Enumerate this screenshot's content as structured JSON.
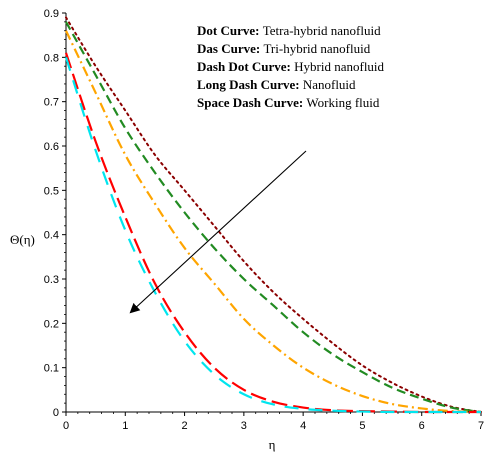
{
  "chart_data": {
    "type": "line",
    "xlabel": "η",
    "ylabel": "Θ(η)",
    "xlim": [
      0,
      7
    ],
    "ylim": [
      0,
      0.9
    ],
    "x_ticks": [
      "0",
      "1",
      "2",
      "3",
      "4",
      "5",
      "6",
      "7"
    ],
    "y_ticks": [
      "0",
      "0.1",
      "0.2",
      "0.3",
      "0.4",
      "0.5",
      "0.6",
      "0.7",
      "0.8",
      "0.9"
    ],
    "grid": false,
    "legend": [
      {
        "key": "Dot Curve:",
        "text": "Tetra-hybrid nanofluid"
      },
      {
        "key": "Das Curve:",
        "text": "Tri-hybrid nanofluid"
      },
      {
        "key": "Dash Dot Curve:",
        "text": "Hybrid nanofluid"
      },
      {
        "key": "Long Dash Curve:",
        "text": "Nanofluid"
      },
      {
        "key": "Space Dash Curve:",
        "text": "Working fluid"
      }
    ],
    "legend_position": "top-right",
    "arrow_direction": "upper-right to lower-left",
    "series": [
      {
        "color": "#8b0000",
        "style": "dot",
        "x": [
          0,
          0.5,
          1,
          1.5,
          2,
          2.5,
          3,
          3.5,
          4,
          4.5,
          5,
          5.5,
          6,
          6.5,
          7
        ],
        "y": [
          0.89,
          0.78,
          0.68,
          0.58,
          0.5,
          0.42,
          0.34,
          0.27,
          0.21,
          0.155,
          0.105,
          0.066,
          0.035,
          0.012,
          0.0
        ]
      },
      {
        "color": "#228b22",
        "style": "dash",
        "x": [
          0,
          0.5,
          1,
          1.5,
          2,
          2.5,
          3,
          3.5,
          4,
          4.5,
          5,
          5.5,
          6,
          6.5,
          7
        ],
        "y": [
          0.88,
          0.76,
          0.64,
          0.54,
          0.45,
          0.37,
          0.3,
          0.24,
          0.18,
          0.13,
          0.09,
          0.055,
          0.03,
          0.01,
          0.0
        ]
      },
      {
        "color": "#ffa500",
        "style": "dashdot",
        "x": [
          0,
          0.5,
          1,
          1.5,
          2,
          2.5,
          3,
          3.5,
          4,
          4.5,
          5,
          5.5,
          6,
          6.5,
          7
        ],
        "y": [
          0.86,
          0.72,
          0.58,
          0.47,
          0.37,
          0.29,
          0.21,
          0.15,
          0.1,
          0.063,
          0.036,
          0.018,
          0.008,
          0.002,
          0.0
        ]
      },
      {
        "color": "#ff0000",
        "style": "longdash",
        "x": [
          0,
          0.5,
          1,
          1.5,
          2,
          2.5,
          3,
          3.5,
          4,
          4.5,
          5,
          5.5,
          6,
          6.5,
          7
        ],
        "y": [
          0.81,
          0.61,
          0.44,
          0.29,
          0.18,
          0.1,
          0.05,
          0.023,
          0.01,
          0.004,
          0.002,
          0.001,
          0.0,
          0.0,
          0.0
        ]
      },
      {
        "color": "#00e5ee",
        "style": "spacedash",
        "x": [
          0,
          0.5,
          1,
          1.5,
          2,
          2.5,
          3,
          3.5,
          4,
          4.5,
          5,
          5.5,
          6,
          6.5,
          7
        ],
        "y": [
          0.8,
          0.59,
          0.41,
          0.27,
          0.16,
          0.085,
          0.04,
          0.017,
          0.007,
          0.003,
          0.001,
          0.0,
          0.0,
          0.0,
          0.0
        ]
      }
    ]
  }
}
